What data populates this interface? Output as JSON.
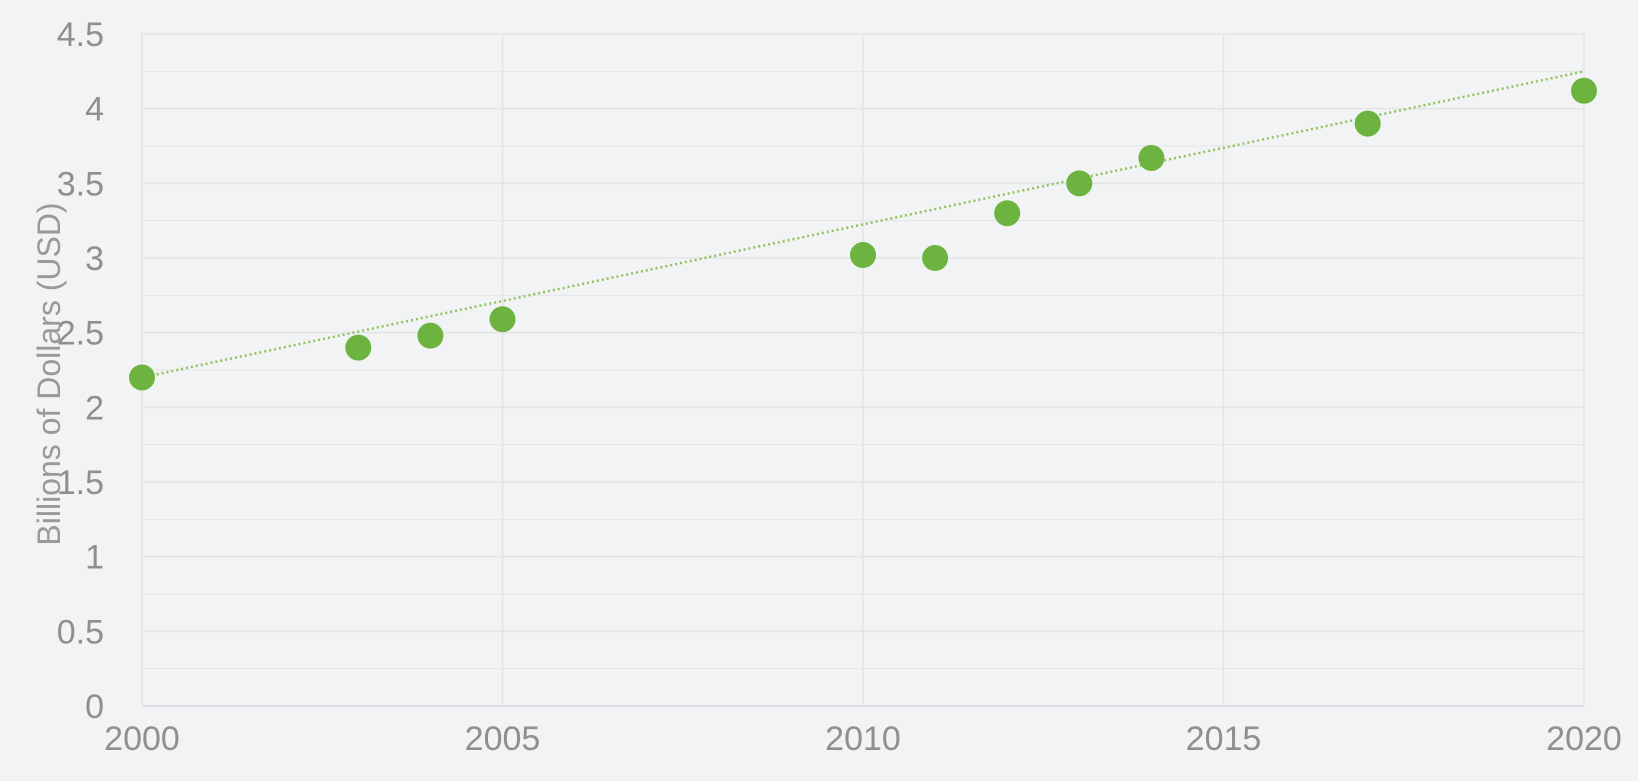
{
  "chart_data": {
    "type": "scatter",
    "title": "",
    "xlabel": "",
    "ylabel": "Billions of Dollars (USD)",
    "xlim": [
      2000,
      2020
    ],
    "ylim": [
      0,
      4.5
    ],
    "x_ticks": [
      "2000",
      "2005",
      "2010",
      "2015",
      "2020"
    ],
    "y_ticks": [
      "0",
      "0.5",
      "1",
      "1.5",
      "2",
      "2.5",
      "3",
      "3.5",
      "4",
      "4.5"
    ],
    "grid": true,
    "legend": false,
    "trendline": {
      "type": "linear",
      "style": "dotted",
      "from": [
        2000,
        2.2
      ],
      "to": [
        2020,
        4.25
      ]
    },
    "series": [
      {
        "points": [
          {
            "x": 2000,
            "y": 2.2
          },
          {
            "x": 2003,
            "y": 2.4
          },
          {
            "x": 2004,
            "y": 2.48
          },
          {
            "x": 2005,
            "y": 2.59
          },
          {
            "x": 2010,
            "y": 3.02
          },
          {
            "x": 2011,
            "y": 3.0
          },
          {
            "x": 2012,
            "y": 3.3
          },
          {
            "x": 2013,
            "y": 3.5
          },
          {
            "x": 2014,
            "y": 3.67
          },
          {
            "x": 2017,
            "y": 3.9
          },
          {
            "x": 2020,
            "y": 4.12
          }
        ]
      }
    ]
  },
  "colors": {
    "plot_background": "#f2f3f4",
    "marker": "#6db33f",
    "trendline": "#8fc25a",
    "grid": "#e3e4e6",
    "tick_text": "#8f8f8f",
    "axis_title": "#999999"
  }
}
